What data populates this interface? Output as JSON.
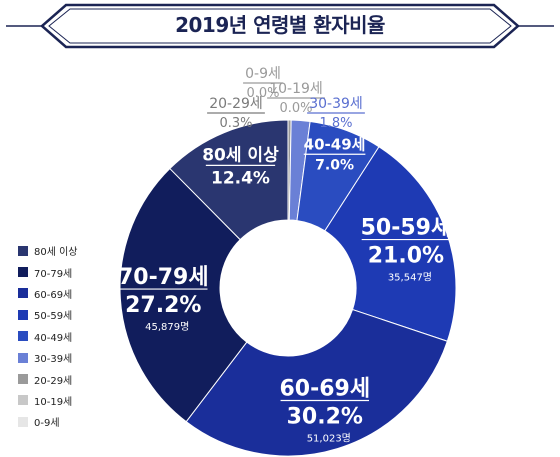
{
  "chart_data": {
    "type": "pie",
    "title": "2019년 연령별 환자비율",
    "categories": [
      "0-9세",
      "10-19세",
      "20-29세",
      "30-39세",
      "40-49세",
      "50-59세",
      "60-69세",
      "70-79세",
      "80세 이상"
    ],
    "values": [
      0.0,
      0.0,
      0.3,
      1.8,
      7.0,
      21.0,
      30.2,
      27.2,
      12.4
    ],
    "value_labels": [
      "0.0%",
      "0.0%",
      "0.3%",
      "1.8%",
      "7.0%",
      "21.0%",
      "30.2%",
      "27.2%",
      "12.4%"
    ],
    "counts": [
      "",
      "",
      "",
      "",
      "",
      "35,547명",
      "51,023명",
      "45,879명",
      ""
    ],
    "colors": [
      "#e6e6e6",
      "#c8c8c8",
      "#9a9a9a",
      "#6a80d6",
      "#2a4cc0",
      "#1e3ab4",
      "#1a2e9a",
      "#111d5c",
      "#2a3670"
    ],
    "donut": true,
    "legend_position": "left",
    "legend": [
      {
        "label": "80세 이상",
        "color": "#2a3670"
      },
      {
        "label": "70-79세",
        "color": "#111d5c"
      },
      {
        "label": "60-69세",
        "color": "#1a2e9a"
      },
      {
        "label": "50-59세",
        "color": "#1e3ab4"
      },
      {
        "label": "40-49세",
        "color": "#2a4cc0"
      },
      {
        "label": "30-39세",
        "color": "#6a80d6"
      },
      {
        "label": "20-29세",
        "color": "#9a9a9a"
      },
      {
        "label": "10-19세",
        "color": "#c8c8c8"
      },
      {
        "label": "0-9세",
        "color": "#e6e6e6"
      }
    ]
  }
}
